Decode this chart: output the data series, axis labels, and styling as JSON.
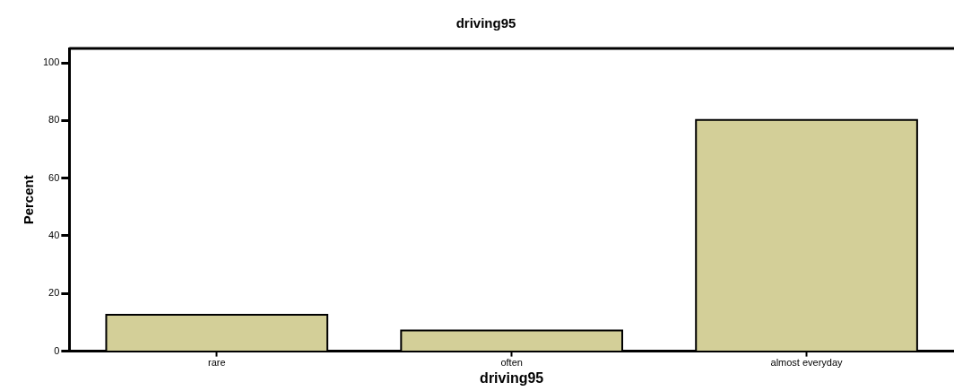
{
  "chart_data": {
    "type": "bar",
    "title": "driving95",
    "xlabel": "driving95",
    "ylabel": "Percent",
    "categories": [
      "rare",
      "often",
      "almost everyday"
    ],
    "values": [
      12.6,
      7.2,
      80.2
    ],
    "color": "#d3cf98",
    "ylim": [
      0,
      105
    ],
    "yticks": [
      0,
      20,
      40,
      60,
      80,
      100
    ],
    "grid": false,
    "legend": false
  }
}
